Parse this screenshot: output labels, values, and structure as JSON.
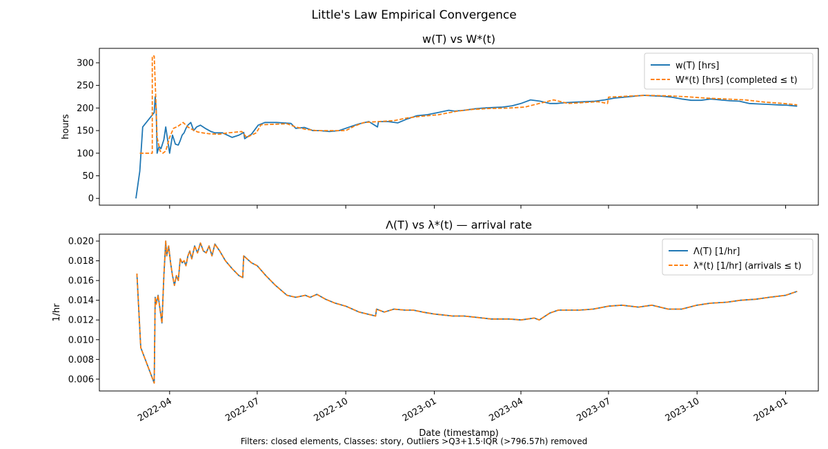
{
  "suptitle": "Little's Law Empirical Convergence",
  "footer": "Filters: closed elements, Classes: story, Outliers >Q3+1.5·IQR (>796.57h) removed",
  "colors": {
    "series1": "#1f77b4",
    "series2": "#ff7f0e",
    "axis": "#000000"
  },
  "chart_data": [
    {
      "type": "line",
      "title": "w(T) vs W*(t)",
      "xlabel": "",
      "ylabel": "hours",
      "xlim": [
        "2022-01-18",
        "2024-02-04"
      ],
      "ylim": [
        -15,
        332
      ],
      "y_ticks": [
        0,
        50,
        100,
        150,
        200,
        250,
        300
      ],
      "y_tick_labels": [
        "0",
        "50",
        "100",
        "150",
        "200",
        "250",
        "300"
      ],
      "legend_loc": "top-right",
      "series": [
        {
          "name": "w(T) [hrs]",
          "style": "solid",
          "x": [
            "2022-02-25",
            "2022-03-01",
            "2022-03-04",
            "2022-03-16",
            "2022-03-17",
            "2022-03-18",
            "2022-03-19",
            "2022-03-21",
            "2022-03-23",
            "2022-03-26",
            "2022-03-28",
            "2022-04-01",
            "2022-04-04",
            "2022-04-07",
            "2022-04-10",
            "2022-04-12",
            "2022-04-14",
            "2022-04-16",
            "2022-04-18",
            "2022-04-20",
            "2022-04-23",
            "2022-04-26",
            "2022-04-29",
            "2022-05-03",
            "2022-05-08",
            "2022-05-14",
            "2022-05-18",
            "2022-05-26",
            "2022-06-05",
            "2022-06-12",
            "2022-06-17",
            "2022-06-18",
            "2022-06-25",
            "2022-07-02",
            "2022-07-09",
            "2022-07-21",
            "2022-08-05",
            "2022-08-10",
            "2022-08-19",
            "2022-08-28",
            "2022-09-04",
            "2022-09-14",
            "2022-09-24",
            "2022-10-05",
            "2022-10-15",
            "2022-10-25",
            "2022-11-03",
            "2022-11-04",
            "2022-11-14",
            "2022-11-24",
            "2022-12-04",
            "2022-12-14",
            "2022-12-24",
            "2023-01-05",
            "2023-01-16",
            "2023-01-22",
            "2023-02-01",
            "2023-02-11",
            "2023-02-21",
            "2023-03-03",
            "2023-03-13",
            "2023-03-23",
            "2023-04-01",
            "2023-04-11",
            "2023-04-21",
            "2023-05-01",
            "2023-05-08",
            "2023-05-18",
            "2023-05-28",
            "2023-06-07",
            "2023-06-17",
            "2023-06-27",
            "2023-07-07",
            "2023-07-17",
            "2023-07-27",
            "2023-08-06",
            "2023-08-16",
            "2023-08-26",
            "2023-09-05",
            "2023-09-15",
            "2023-09-25",
            "2023-10-05",
            "2023-10-15",
            "2023-10-25",
            "2023-11-04",
            "2023-11-14",
            "2023-11-24",
            "2023-12-04",
            "2023-12-14",
            "2023-12-24",
            "2024-01-03",
            "2024-01-13"
          ],
          "values": [
            0,
            60,
            158,
            190,
            225,
            200,
            100,
            115,
            110,
            130,
            158,
            100,
            140,
            120,
            118,
            128,
            140,
            145,
            155,
            162,
            168,
            150,
            158,
            162,
            155,
            148,
            145,
            145,
            135,
            140,
            146,
            132,
            142,
            162,
            168,
            168,
            166,
            155,
            157,
            150,
            150,
            148,
            150,
            158,
            165,
            170,
            158,
            170,
            170,
            167,
            176,
            183,
            185,
            190,
            195,
            193,
            195,
            198,
            200,
            201,
            202,
            205,
            210,
            218,
            215,
            210,
            210,
            212,
            213,
            214,
            215,
            218,
            222,
            224,
            226,
            228,
            227,
            226,
            224,
            220,
            217,
            217,
            220,
            218,
            216,
            215,
            210,
            209,
            208,
            207,
            206,
            204
          ]
        },
        {
          "name": "W*(t) [hrs] (completed ≤ t)",
          "style": "dashed",
          "x": [
            "2022-03-01",
            "2022-03-14",
            "2022-03-14",
            "2022-03-16",
            "2022-03-18",
            "2022-03-19",
            "2022-03-22",
            "2022-03-25",
            "2022-03-28",
            "2022-04-01",
            "2022-04-05",
            "2022-04-10",
            "2022-04-15",
            "2022-04-20",
            "2022-04-25",
            "2022-04-30",
            "2022-05-05",
            "2022-05-12",
            "2022-05-22",
            "2022-06-01",
            "2022-06-15",
            "2022-06-20",
            "2022-06-30",
            "2022-07-05",
            "2022-08-01",
            "2022-08-10",
            "2022-08-20",
            "2022-09-01",
            "2022-10-01",
            "2022-10-10",
            "2022-10-20",
            "2022-11-04",
            "2022-11-20",
            "2022-12-04",
            "2022-12-20",
            "2023-01-05",
            "2023-01-25",
            "2023-02-10",
            "2023-03-01",
            "2023-03-20",
            "2023-04-05",
            "2023-04-20",
            "2023-05-05",
            "2023-05-20",
            "2023-06-05",
            "2023-06-20",
            "2023-06-30",
            "2023-07-01",
            "2023-07-20",
            "2023-08-10",
            "2023-08-30",
            "2023-09-20",
            "2023-10-10",
            "2023-10-30",
            "2023-11-20",
            "2023-12-10",
            "2023-12-30",
            "2024-01-13"
          ],
          "values": [
            100,
            100,
            315,
            315,
            200,
            135,
            105,
            100,
            105,
            135,
            155,
            160,
            168,
            158,
            152,
            147,
            145,
            143,
            142,
            145,
            148,
            135,
            145,
            163,
            165,
            158,
            153,
            150,
            150,
            160,
            168,
            170,
            172,
            178,
            182,
            185,
            193,
            197,
            199,
            200,
            202,
            210,
            218,
            210,
            212,
            214,
            210,
            224,
            226,
            228,
            227,
            225,
            222,
            220,
            218,
            213,
            210,
            207
          ]
        }
      ]
    },
    {
      "type": "line",
      "title": "Λ(T) vs λ*(t)  — arrival rate",
      "xlabel": "Date (timestamp)",
      "ylabel": "1/hr",
      "xlim": [
        "2022-01-18",
        "2024-02-04"
      ],
      "ylim": [
        0.0048,
        0.0207
      ],
      "y_ticks": [
        0.006,
        0.008,
        0.01,
        0.012,
        0.014,
        0.016,
        0.018,
        0.02
      ],
      "y_tick_labels": [
        "0.006",
        "0.008",
        "0.010",
        "0.012",
        "0.014",
        "0.016",
        "0.018",
        "0.020"
      ],
      "x_ticks": [
        "2022-04-01",
        "2022-07-01",
        "2022-10-01",
        "2023-01-01",
        "2023-04-01",
        "2023-07-01",
        "2023-10-01",
        "2024-01-01"
      ],
      "x_tick_labels": [
        "2022-04",
        "2022-07",
        "2022-10",
        "2023-01",
        "2023-04",
        "2023-07",
        "2023-10",
        "2024-01"
      ],
      "legend_loc": "top-right",
      "series": [
        {
          "name": "Λ(T) [1/hr]",
          "style": "solid",
          "x": [
            "2022-02-26",
            "2022-03-02",
            "2022-03-16",
            "2022-03-17",
            "2022-03-18",
            "2022-03-20",
            "2022-03-24",
            "2022-03-26",
            "2022-03-28",
            "2022-03-29",
            "2022-03-31",
            "2022-04-02",
            "2022-04-04",
            "2022-04-06",
            "2022-04-08",
            "2022-04-10",
            "2022-04-12",
            "2022-04-14",
            "2022-04-16",
            "2022-04-18",
            "2022-04-20",
            "2022-04-22",
            "2022-04-24",
            "2022-04-27",
            "2022-04-30",
            "2022-05-03",
            "2022-05-06",
            "2022-05-09",
            "2022-05-12",
            "2022-05-15",
            "2022-05-18",
            "2022-05-23",
            "2022-05-29",
            "2022-06-05",
            "2022-06-12",
            "2022-06-16",
            "2022-06-17",
            "2022-06-25",
            "2022-07-01",
            "2022-07-10",
            "2022-07-20",
            "2022-08-01",
            "2022-08-10",
            "2022-08-20",
            "2022-08-25",
            "2022-09-01",
            "2022-09-10",
            "2022-09-20",
            "2022-10-01",
            "2022-10-15",
            "2022-11-01",
            "2022-11-02",
            "2022-11-10",
            "2022-11-20",
            "2022-12-01",
            "2022-12-10",
            "2022-12-20",
            "2023-01-01",
            "2023-01-20",
            "2023-02-01",
            "2023-02-20",
            "2023-03-01",
            "2023-03-20",
            "2023-04-01",
            "2023-04-15",
            "2023-04-20",
            "2023-05-01",
            "2023-05-10",
            "2023-05-20",
            "2023-06-01",
            "2023-06-15",
            "2023-07-01",
            "2023-07-15",
            "2023-08-01",
            "2023-08-15",
            "2023-09-01",
            "2023-09-15",
            "2023-10-01",
            "2023-10-15",
            "2023-11-01",
            "2023-11-15",
            "2023-12-01",
            "2023-12-15",
            "2024-01-01",
            "2024-01-13"
          ],
          "values": [
            0.0167,
            0.0092,
            0.0056,
            0.0143,
            0.0136,
            0.0145,
            0.0117,
            0.0165,
            0.02,
            0.0185,
            0.0195,
            0.0178,
            0.0165,
            0.0155,
            0.0165,
            0.016,
            0.0182,
            0.0178,
            0.018,
            0.0175,
            0.0185,
            0.019,
            0.0182,
            0.0195,
            0.0188,
            0.0198,
            0.019,
            0.0188,
            0.0195,
            0.0185,
            0.0197,
            0.019,
            0.018,
            0.0172,
            0.0165,
            0.0163,
            0.0185,
            0.0178,
            0.0175,
            0.0165,
            0.0155,
            0.0145,
            0.0143,
            0.0145,
            0.0143,
            0.0146,
            0.0141,
            0.0137,
            0.0134,
            0.0128,
            0.0124,
            0.0131,
            0.0128,
            0.0131,
            0.013,
            0.013,
            0.0128,
            0.0126,
            0.0124,
            0.0124,
            0.0122,
            0.0121,
            0.0121,
            0.012,
            0.0122,
            0.012,
            0.0127,
            0.013,
            0.013,
            0.013,
            0.0131,
            0.0134,
            0.0135,
            0.0133,
            0.0135,
            0.0131,
            0.0131,
            0.0135,
            0.0137,
            0.0138,
            0.014,
            0.0141,
            0.0143,
            0.0145,
            0.0149
          ]
        },
        {
          "name": "λ*(t) [1/hr] (arrivals ≤ t)",
          "style": "dashed",
          "x": [
            "2022-02-26",
            "2022-03-02",
            "2022-03-16",
            "2022-03-17",
            "2022-03-18",
            "2022-03-20",
            "2022-03-24",
            "2022-03-26",
            "2022-03-28",
            "2022-03-29",
            "2022-03-31",
            "2022-04-02",
            "2022-04-04",
            "2022-04-06",
            "2022-04-08",
            "2022-04-10",
            "2022-04-12",
            "2022-04-14",
            "2022-04-16",
            "2022-04-18",
            "2022-04-20",
            "2022-04-22",
            "2022-04-24",
            "2022-04-27",
            "2022-04-30",
            "2022-05-03",
            "2022-05-06",
            "2022-05-09",
            "2022-05-12",
            "2022-05-15",
            "2022-05-18",
            "2022-05-23",
            "2022-05-29",
            "2022-06-05",
            "2022-06-12",
            "2022-06-16",
            "2022-06-17",
            "2022-06-25",
            "2022-07-01",
            "2022-07-10",
            "2022-07-20",
            "2022-08-01",
            "2022-08-10",
            "2022-08-20",
            "2022-08-25",
            "2022-09-01",
            "2022-09-10",
            "2022-09-20",
            "2022-10-01",
            "2022-10-15",
            "2022-11-01",
            "2022-11-02",
            "2022-11-10",
            "2022-11-20",
            "2022-12-01",
            "2022-12-10",
            "2022-12-20",
            "2023-01-01",
            "2023-01-20",
            "2023-02-01",
            "2023-02-20",
            "2023-03-01",
            "2023-03-20",
            "2023-04-01",
            "2023-04-15",
            "2023-04-20",
            "2023-05-01",
            "2023-05-10",
            "2023-05-20",
            "2023-06-01",
            "2023-06-15",
            "2023-07-01",
            "2023-07-15",
            "2023-08-01",
            "2023-08-15",
            "2023-09-01",
            "2023-09-15",
            "2023-10-01",
            "2023-10-15",
            "2023-11-01",
            "2023-11-15",
            "2023-12-01",
            "2023-12-15",
            "2024-01-01",
            "2024-01-13"
          ],
          "values": [
            0.0167,
            0.0092,
            0.0056,
            0.0143,
            0.0136,
            0.0145,
            0.0117,
            0.0165,
            0.02,
            0.0185,
            0.0195,
            0.0178,
            0.0165,
            0.0155,
            0.0165,
            0.016,
            0.0182,
            0.0178,
            0.018,
            0.0175,
            0.0185,
            0.019,
            0.0182,
            0.0195,
            0.0188,
            0.0198,
            0.019,
            0.0188,
            0.0195,
            0.0185,
            0.0197,
            0.019,
            0.018,
            0.0172,
            0.0165,
            0.0163,
            0.0185,
            0.0178,
            0.0175,
            0.0165,
            0.0155,
            0.0145,
            0.0143,
            0.0145,
            0.0143,
            0.0146,
            0.0141,
            0.0137,
            0.0134,
            0.0128,
            0.0124,
            0.0131,
            0.0128,
            0.0131,
            0.013,
            0.013,
            0.0128,
            0.0126,
            0.0124,
            0.0124,
            0.0122,
            0.0121,
            0.0121,
            0.012,
            0.0122,
            0.012,
            0.0127,
            0.013,
            0.013,
            0.013,
            0.0131,
            0.0134,
            0.0135,
            0.0133,
            0.0135,
            0.0131,
            0.0131,
            0.0135,
            0.0137,
            0.0138,
            0.014,
            0.0141,
            0.0143,
            0.0145,
            0.0149
          ]
        }
      ]
    }
  ]
}
